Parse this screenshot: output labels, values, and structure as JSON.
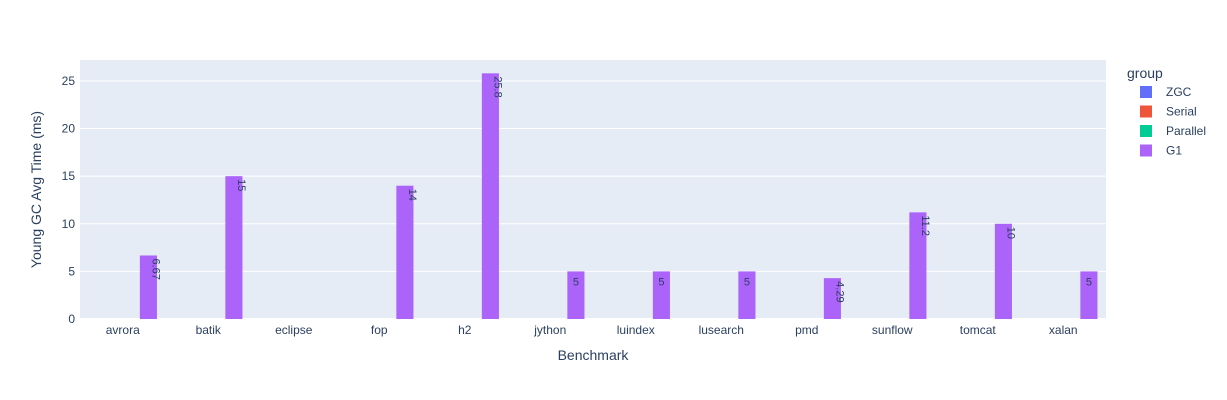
{
  "chart_data": {
    "type": "bar",
    "barmode": "group",
    "categories": [
      "avrora",
      "batik",
      "eclipse",
      "fop",
      "h2",
      "jython",
      "luindex",
      "lusearch",
      "pmd",
      "sunflow",
      "tomcat",
      "xalan"
    ],
    "series": [
      {
        "name": "ZGC",
        "color": "#636efa",
        "values": [
          null,
          null,
          null,
          null,
          null,
          null,
          null,
          null,
          null,
          null,
          null,
          null
        ]
      },
      {
        "name": "Serial",
        "color": "#EF553B",
        "values": [
          null,
          null,
          null,
          null,
          null,
          null,
          null,
          null,
          null,
          null,
          null,
          null
        ]
      },
      {
        "name": "Parallel",
        "color": "#00cc96",
        "values": [
          null,
          null,
          null,
          null,
          null,
          null,
          null,
          null,
          null,
          null,
          null,
          null
        ]
      },
      {
        "name": "G1",
        "color": "#ab63fa",
        "values": [
          6.67,
          15,
          null,
          14,
          25.8,
          5,
          5,
          5,
          4.29,
          11.2,
          10,
          5
        ]
      }
    ],
    "bar_labels": [
      "6.67",
      "15",
      "",
      "14",
      "25.8",
      "5",
      "5",
      "5",
      "4.29",
      "11.2",
      "10",
      "5"
    ],
    "xlabel": "Benchmark",
    "ylabel": "Young GC Avg Time (ms)",
    "yticks": [
      0,
      5,
      10,
      15,
      20,
      25
    ],
    "ylim": [
      0,
      27.2
    ],
    "legend_title": "group",
    "legend_position": "right",
    "grid": true,
    "plot_bg": "#E5ECF6"
  }
}
